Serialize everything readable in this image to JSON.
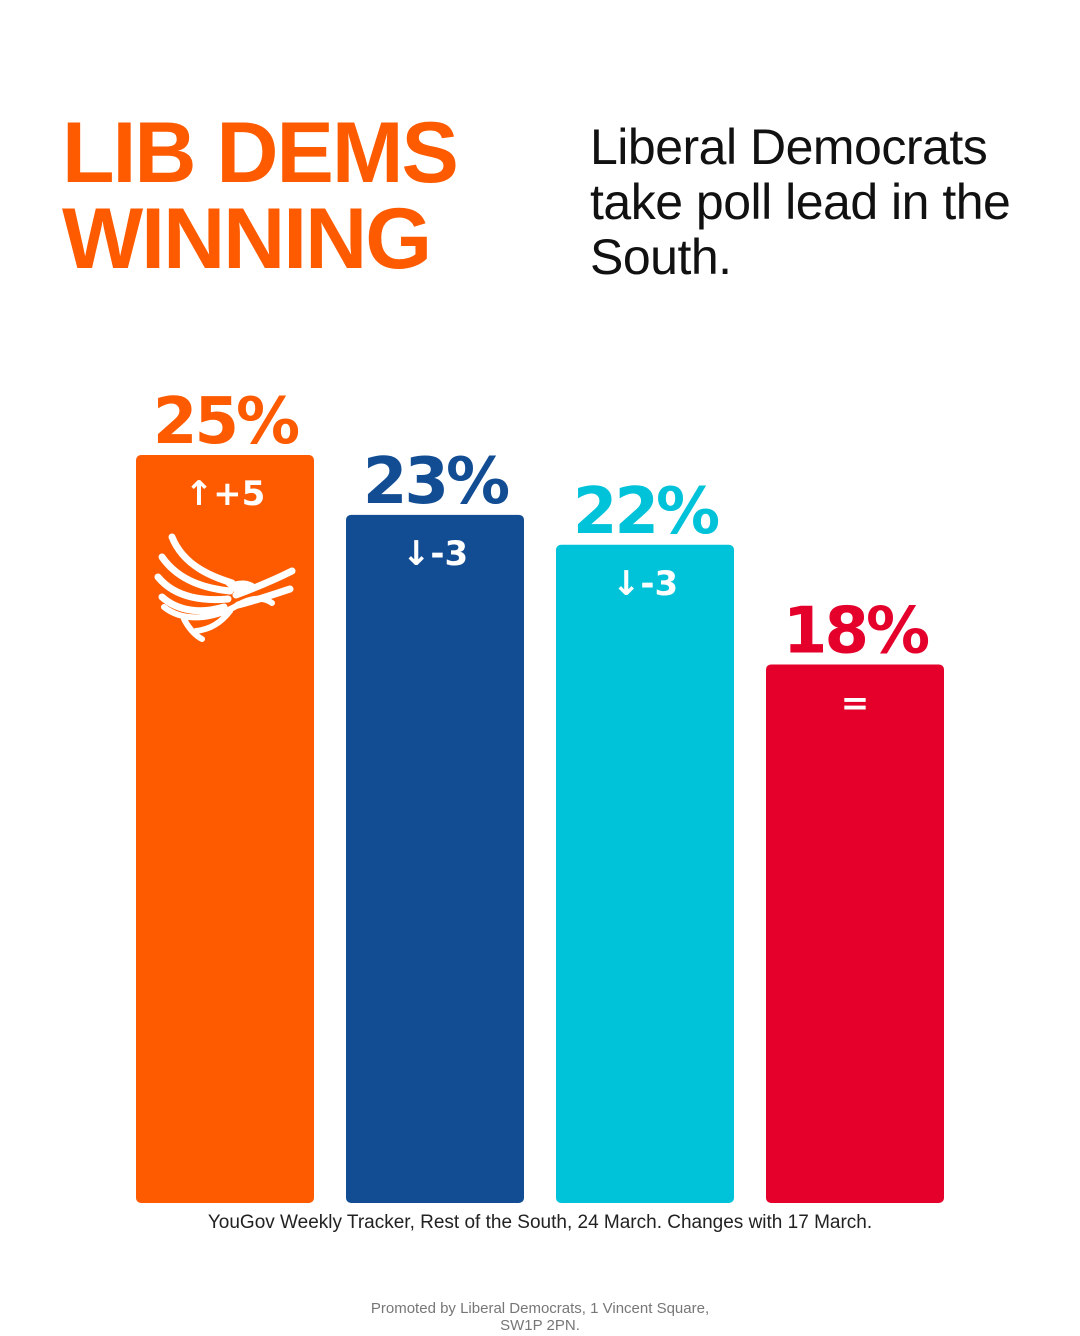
{
  "headline": {
    "line1": "LIB DEMS",
    "line2": "WINNING",
    "color": "#fe5b00"
  },
  "subtitle": "Liberal Democrats take poll lead in the South.",
  "chart_data": {
    "type": "bar",
    "categories": [
      "",
      "",
      "",
      ""
    ],
    "values": [
      25,
      23,
      22,
      18
    ],
    "value_labels": [
      "25%",
      "23%",
      "22%",
      "18%"
    ],
    "change_labels": [
      "+5",
      "-3",
      "-3",
      "="
    ],
    "change_direction": [
      "up",
      "down",
      "down",
      "none"
    ],
    "colors": [
      "#fe5b00",
      "#124d94",
      "#00c2d9",
      "#e4002b"
    ],
    "ylim": [
      0,
      25
    ],
    "grid": false,
    "legend": "none"
  },
  "logo": {
    "icon": "lib-dem-bird-icon"
  },
  "source": "YouGov Weekly Tracker, Rest of the South, 24 March. Changes with 17 March.",
  "imprint": "Promoted by Liberal Democrats, 1 Vincent Square, SW1P 2PN."
}
